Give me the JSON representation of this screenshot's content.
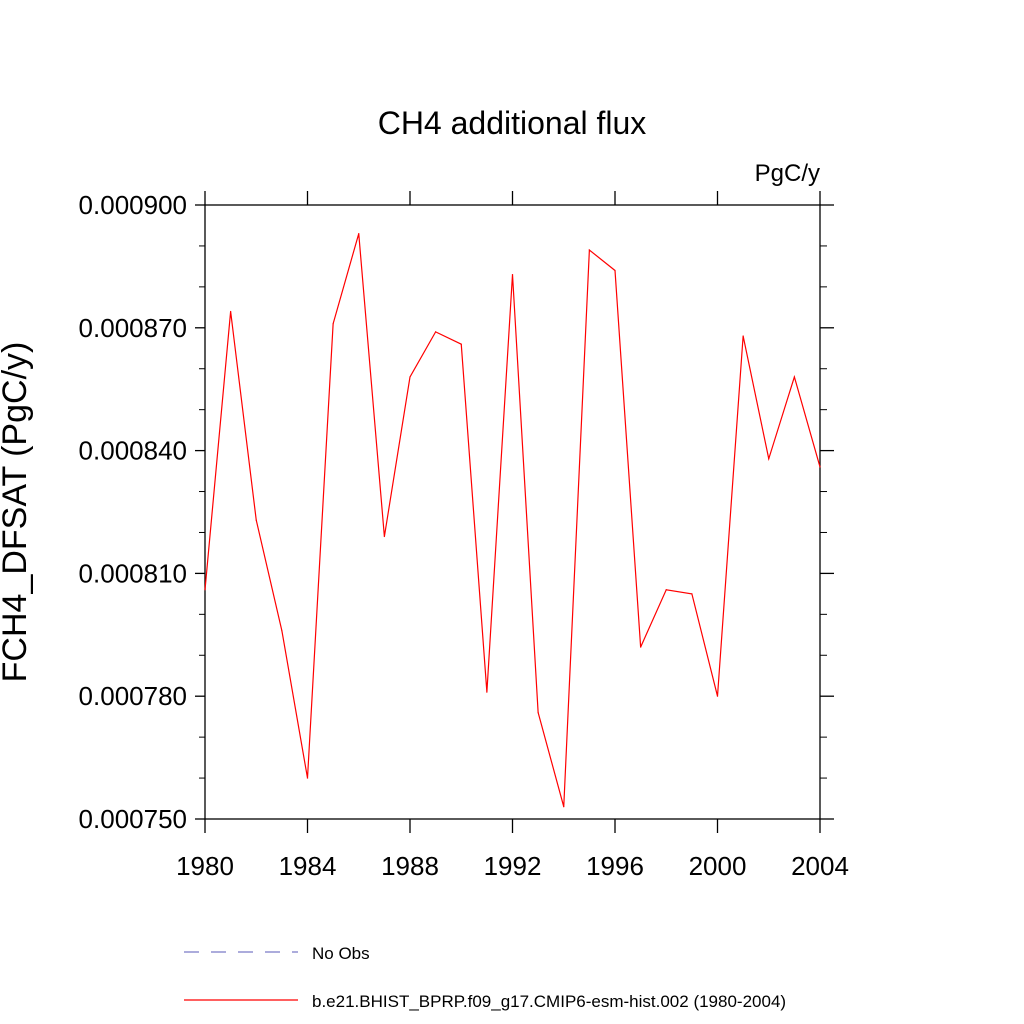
{
  "chart_data": {
    "type": "line",
    "title": "CH4 additional flux",
    "units": "PgC/y",
    "ylabel": "FCH4_DFSAT  (PgC/y)",
    "xlabel": "",
    "xlim": [
      1980,
      2004
    ],
    "ylim": [
      0.00075,
      0.0009
    ],
    "x_ticks": [
      1980,
      1984,
      1988,
      1992,
      1996,
      2000,
      2004
    ],
    "x_tick_labels": [
      "1980",
      "1984",
      "1988",
      "1992",
      "1996",
      "2000",
      "2004"
    ],
    "y_ticks": [
      0.00075,
      0.00078,
      0.00081,
      0.00084,
      0.00087,
      0.0009
    ],
    "y_tick_labels": [
      "0.000750",
      "0.000780",
      "0.000810",
      "0.000840",
      "0.000870",
      "0.000900"
    ],
    "grid": false,
    "legend_position": "bottom",
    "series": [
      {
        "name": "No Obs",
        "color": "#7b7bc8",
        "dash": true,
        "x": [],
        "values": []
      },
      {
        "name": "b.e21.BHIST_BPRP.f09_g17.CMIP6-esm-hist.002 (1980-2004)",
        "color": "#ff0000",
        "dash": false,
        "x": [
          1980,
          1981,
          1982,
          1983,
          1984,
          1985,
          1986,
          1987,
          1988,
          1989,
          1990,
          1991,
          1992,
          1993,
          1994,
          1995,
          1996,
          1997,
          1998,
          1999,
          2000,
          2001,
          2002,
          2003,
          2004
        ],
        "values": [
          0.000806,
          0.000874,
          0.000823,
          0.000796,
          0.00076,
          0.000871,
          0.000893,
          0.000819,
          0.000858,
          0.000869,
          0.000866,
          0.000781,
          0.000883,
          0.000776,
          0.000753,
          0.000889,
          0.000884,
          0.000792,
          0.000806,
          0.000805,
          0.00078,
          0.000868,
          0.000838,
          0.000858,
          0.000836
        ]
      }
    ]
  }
}
